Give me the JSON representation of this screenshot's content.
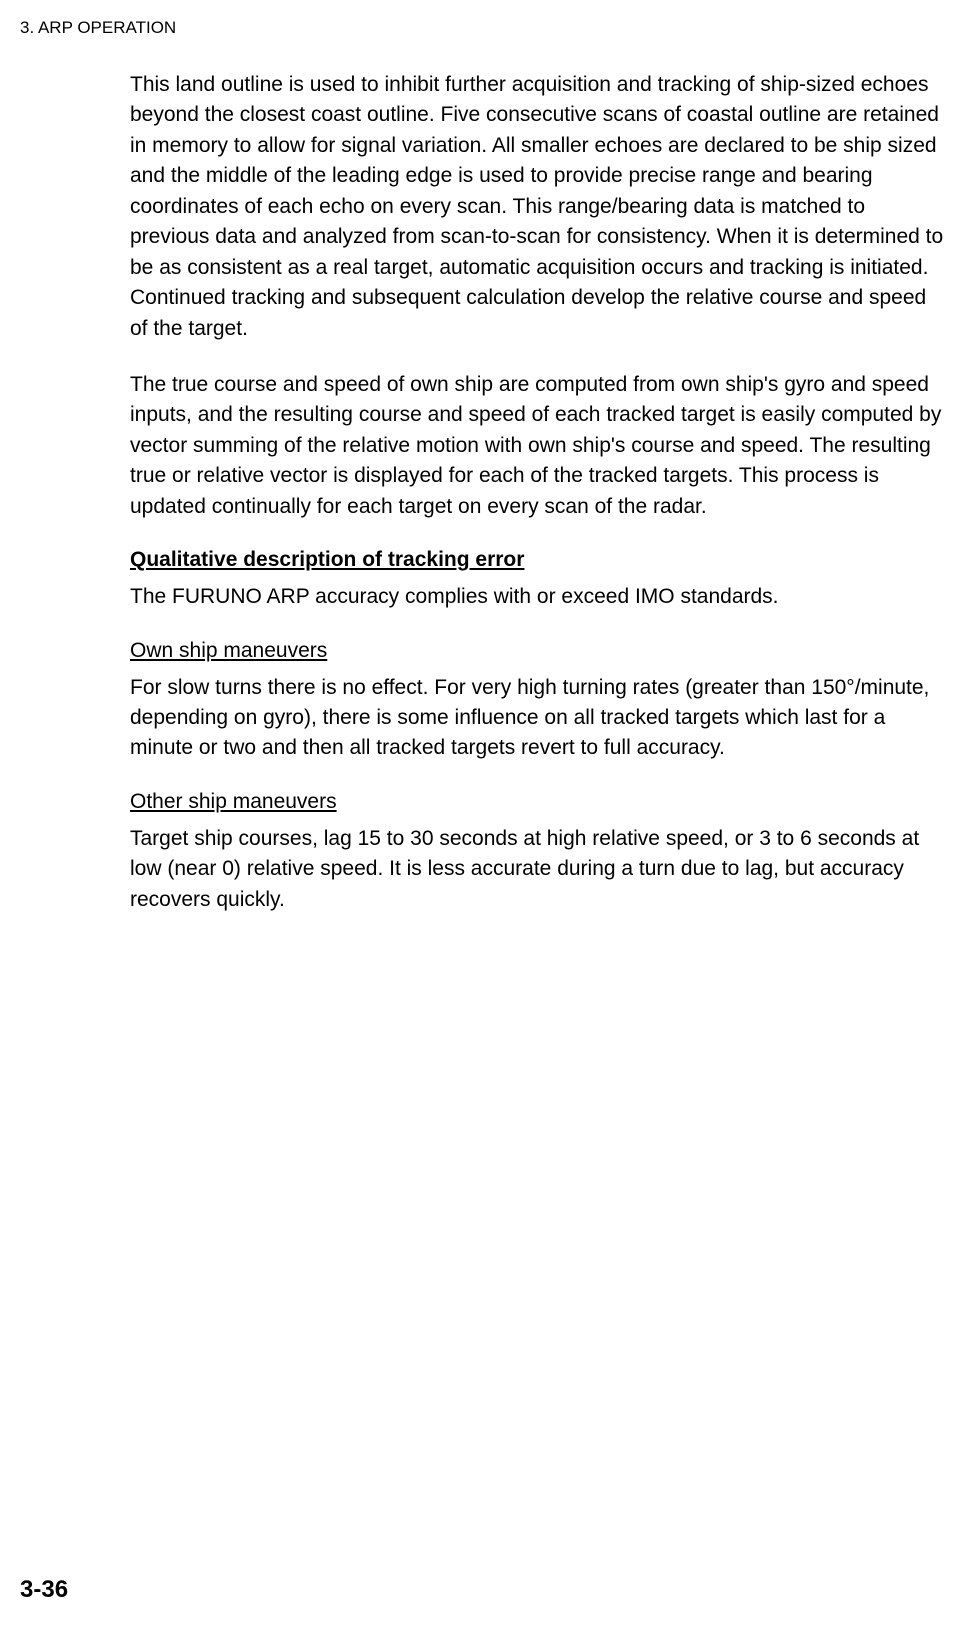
{
  "header": {
    "section_title": "3. ARP OPERATION"
  },
  "content": {
    "para1": "This land outline is used to inhibit further acquisition and tracking of ship-sized echoes beyond the closest coast outline. Five consecutive scans of coastal outline are retained in memory to allow for signal variation. All smaller echoes are declared to be ship sized and the middle of the leading edge is used to provide precise range and bearing coordinates of each echo on every scan. This range/bearing data is matched to previous data and analyzed from scan-to-scan for consistency. When it is determined to be as consistent as a real target, automatic acquisition occurs and tracking is initiated. Continued tracking and subsequent calculation develop the relative course and speed of the target.",
    "para2": "The true course and speed of own ship are computed from own ship's gyro and speed inputs, and the resulting course and speed of each tracked target is easily computed by vector summing of the relative motion with own ship's course and speed. The resulting true or relative vector is displayed for each of the tracked targets. This process is updated continually for each target on every scan of the radar.",
    "qualitative": {
      "title": "Qualitative description of tracking error",
      "text": "The FURUNO ARP accuracy complies with or exceed IMO standards."
    },
    "own_ship": {
      "title": "Own ship maneuvers",
      "text": "For slow turns there is no effect. For very high turning rates (greater than 150°/minute, depending on gyro), there is some influence on all tracked targets which last for a minute or two and then all tracked targets revert to full accuracy."
    },
    "other_ship": {
      "title": "Other ship maneuvers",
      "text": "Target ship courses, lag 15 to 30 seconds at high relative speed, or 3 to 6 seconds at low (near 0) relative speed. It is less accurate during a turn due to lag, but accuracy recovers quickly."
    }
  },
  "footer": {
    "page_number": "3-36"
  }
}
